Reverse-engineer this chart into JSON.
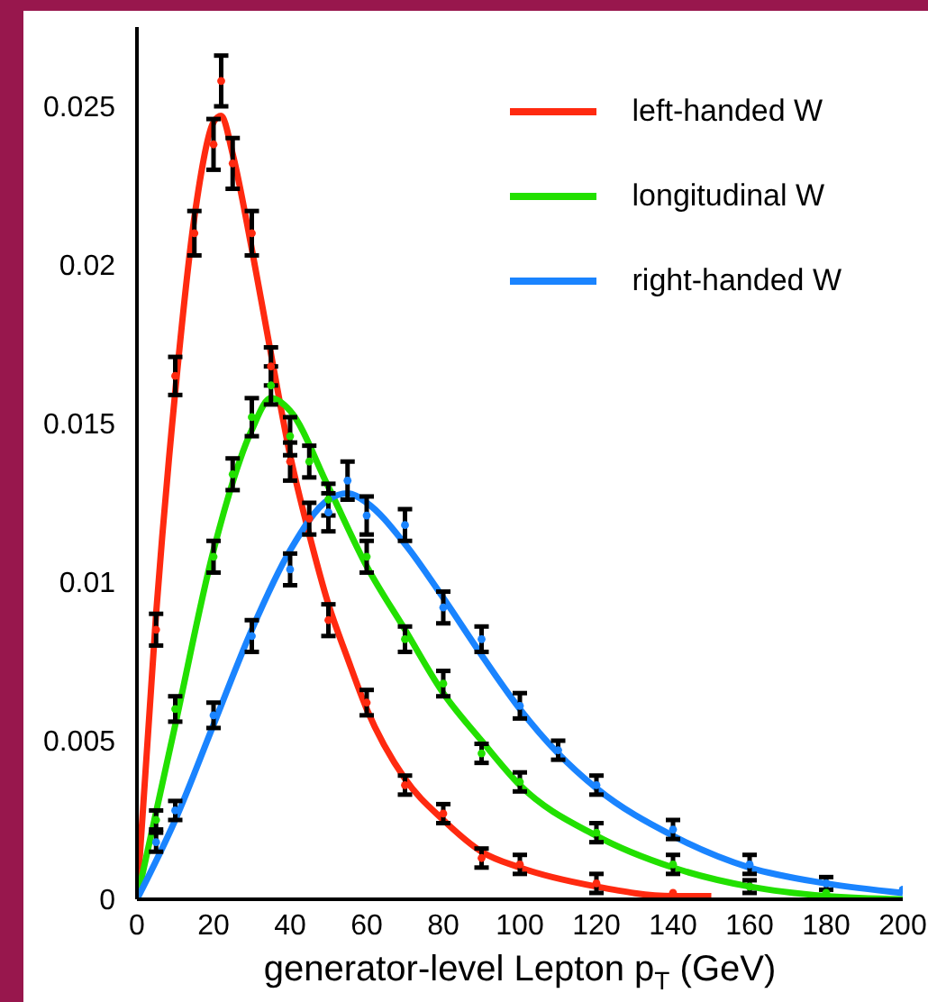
{
  "chart_data": {
    "type": "line",
    "xlabel": "generator-level Lepton p$_{T}$ (GeV)",
    "xlim": [
      0,
      200
    ],
    "xticks": [
      0,
      20,
      40,
      60,
      80,
      100,
      120,
      140,
      160,
      180,
      200
    ],
    "ylim": [
      0,
      0.0275
    ],
    "yticks": [
      0,
      0.005,
      0.01,
      0.015,
      0.02,
      0.025
    ],
    "grid": false,
    "legend": "top right",
    "line_style": "solid",
    "marker": "none",
    "series": [
      {
        "name": "left-handed W",
        "color": "#ff2a10",
        "x": [
          0,
          5,
          10,
          15,
          20,
          22,
          25,
          30,
          35,
          40,
          45,
          50,
          55,
          60,
          70,
          80,
          90,
          100,
          120,
          140,
          150
        ],
        "values": [
          0,
          0.009,
          0.016,
          0.0215,
          0.0245,
          0.0247,
          0.0235,
          0.0205,
          0.0172,
          0.014,
          0.0115,
          0.0093,
          0.0076,
          0.006,
          0.0038,
          0.0025,
          0.0015,
          0.001,
          0.0004,
          0.0001,
          0.0001
        ]
      },
      {
        "name": "longitudinal W",
        "color": "#22e000",
        "x": [
          0,
          10,
          20,
          30,
          35,
          40,
          50,
          60,
          70,
          80,
          90,
          100,
          120,
          140,
          160,
          180,
          200
        ],
        "values": [
          0,
          0.0055,
          0.011,
          0.0148,
          0.0158,
          0.0154,
          0.013,
          0.0105,
          0.0085,
          0.0065,
          0.005,
          0.0036,
          0.002,
          0.001,
          0.0004,
          0.0001,
          0
        ]
      },
      {
        "name": "right-handed W",
        "color": "#1a84ff",
        "x": [
          0,
          10,
          20,
          30,
          40,
          50,
          55,
          60,
          70,
          80,
          90,
          100,
          110,
          120,
          140,
          160,
          180,
          200
        ],
        "values": [
          0,
          0.0025,
          0.0055,
          0.0085,
          0.011,
          0.0126,
          0.0128,
          0.0125,
          0.0112,
          0.0095,
          0.0077,
          0.006,
          0.0046,
          0.0035,
          0.002,
          0.001,
          0.0005,
          0.0002
        ]
      },
      {
        "type": "scatter",
        "marker": "circle",
        "color": "#ff2a10",
        "x": [
          5,
          10,
          15,
          20,
          22,
          25,
          30,
          35,
          40,
          45,
          50,
          60,
          70,
          80,
          90,
          100,
          120,
          140
        ],
        "values": [
          0.0085,
          0.0165,
          0.021,
          0.0238,
          0.0258,
          0.0232,
          0.021,
          0.0168,
          0.0138,
          0.012,
          0.0088,
          0.0062,
          0.0036,
          0.0027,
          0.0013,
          0.0011,
          0.0005,
          0.0002
        ],
        "errors": [
          0.0005,
          0.0006,
          0.0007,
          0.0008,
          0.0008,
          0.0008,
          0.0007,
          0.0006,
          0.0006,
          0.0005,
          0.0005,
          0.0004,
          0.0003,
          0.0003,
          0.0003,
          0.0003,
          0.0003,
          null
        ]
      },
      {
        "type": "scatter",
        "marker": "circle",
        "color": "#22e000",
        "x": [
          5,
          10,
          20,
          25,
          30,
          35,
          40,
          45,
          50,
          60,
          70,
          80,
          90,
          100,
          120,
          140,
          160,
          180
        ],
        "values": [
          0.0025,
          0.006,
          0.0108,
          0.0134,
          0.0152,
          0.0162,
          0.0146,
          0.0138,
          0.0126,
          0.0108,
          0.0082,
          0.0068,
          0.0046,
          0.0037,
          0.0021,
          0.0011,
          0.0004,
          0.0002
        ],
        "errors": [
          0.0003,
          0.0004,
          0.0005,
          0.0005,
          0.0006,
          0.0006,
          0.0006,
          0.0005,
          0.0005,
          0.0005,
          0.0004,
          0.0004,
          0.0003,
          0.0003,
          0.0003,
          0.0003,
          0.0002,
          null
        ]
      },
      {
        "type": "scatter",
        "marker": "circle",
        "color": "#1a84ff",
        "x": [
          5,
          10,
          20,
          30,
          40,
          50,
          55,
          60,
          70,
          80,
          90,
          100,
          110,
          120,
          140,
          160,
          180,
          200
        ],
        "values": [
          0.0018,
          0.0028,
          0.0058,
          0.0083,
          0.0104,
          0.0122,
          0.0132,
          0.0121,
          0.0118,
          0.0092,
          0.0082,
          0.0061,
          0.0047,
          0.0036,
          0.0022,
          0.0011,
          0.0005,
          0.0003
        ],
        "errors": [
          0.0003,
          0.0003,
          0.0004,
          0.0005,
          0.0005,
          0.0006,
          0.0006,
          0.0006,
          0.0005,
          0.0005,
          0.0004,
          0.0004,
          0.0003,
          0.0003,
          0.0003,
          0.0003,
          0.0002,
          null
        ]
      }
    ]
  }
}
